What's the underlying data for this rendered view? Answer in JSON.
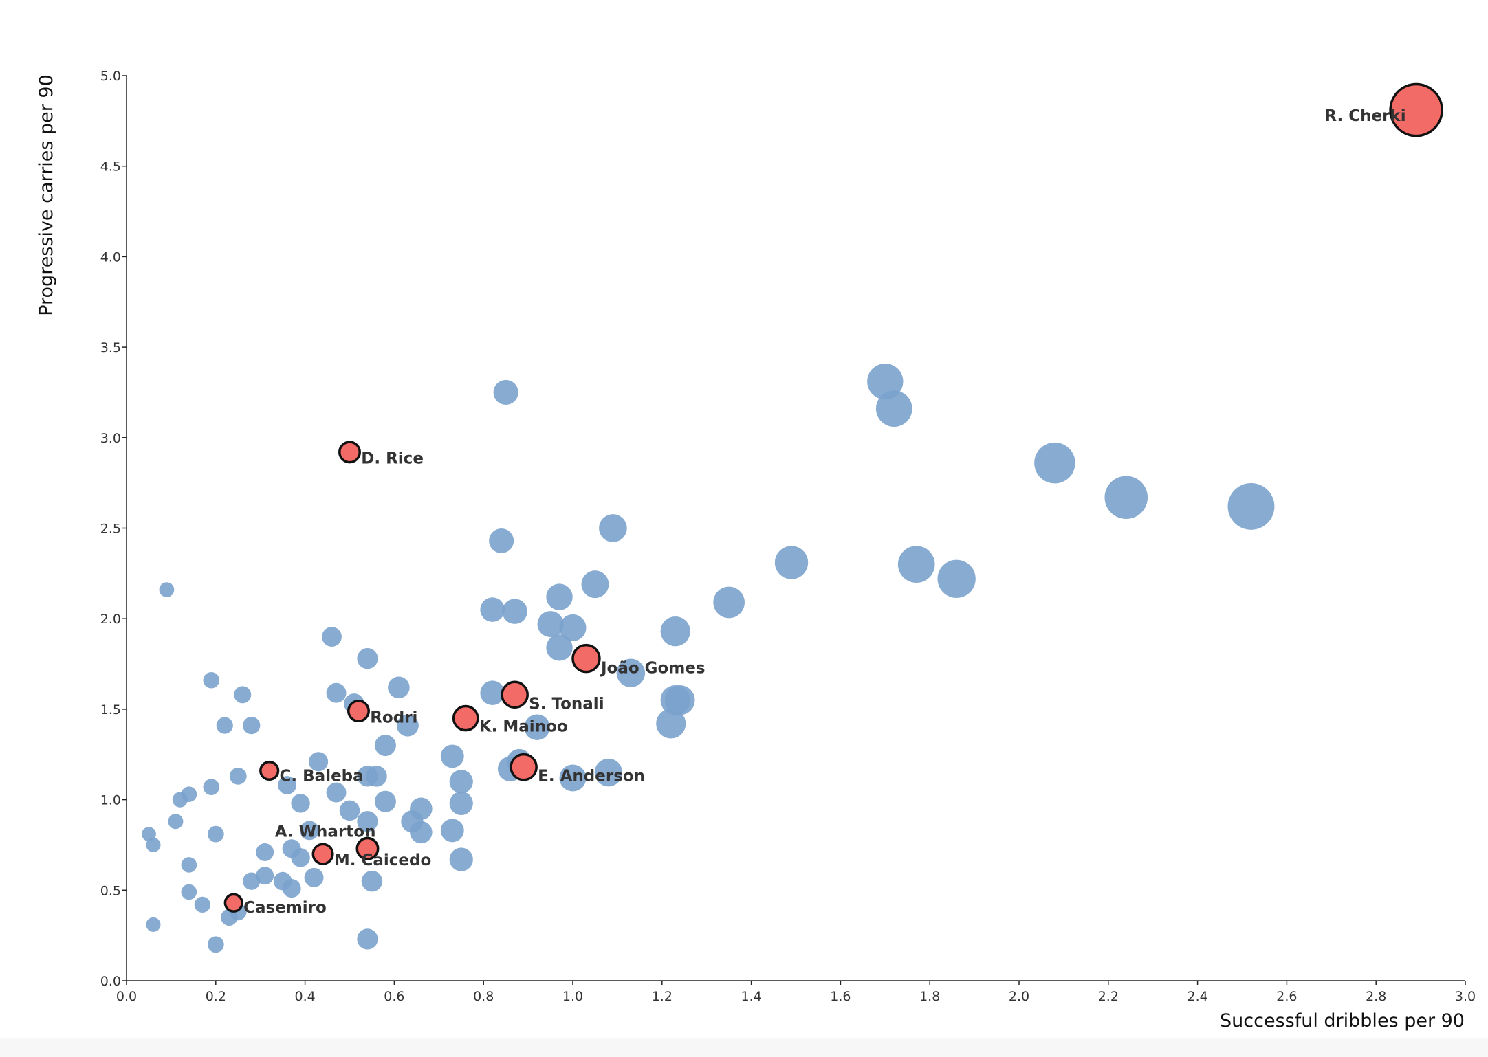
{
  "chart_data": {
    "type": "scatter",
    "xlabel": "Successful dribbles per 90",
    "ylabel": "Progressive carries per 90",
    "xlim": [
      0,
      3
    ],
    "ylim": [
      0,
      5
    ],
    "x_ticks": [
      "0.0",
      "0.2",
      "0.4",
      "0.6",
      "0.8",
      "1.0",
      "1.2",
      "1.4",
      "1.6",
      "1.8",
      "2.0",
      "2.2",
      "2.4",
      "2.6",
      "2.8",
      "3.0"
    ],
    "y_ticks": [
      "0.0",
      "0.5",
      "1.0",
      "1.5",
      "2.0",
      "2.5",
      "3.0",
      "3.5",
      "4.0",
      "4.5",
      "5.0"
    ],
    "grid": false,
    "colors": {
      "background": "#7aa2cc",
      "highlight": "#f26b66",
      "highlight_stroke": "#111111"
    },
    "highlighted": [
      {
        "label": "R. Cherki",
        "x": 2.89,
        "y": 4.81,
        "size": 2.9,
        "label_side": "left"
      },
      {
        "label": "D. Rice",
        "x": 0.5,
        "y": 2.92,
        "size": 0.5,
        "label_side": "right"
      },
      {
        "label": "João Gomes",
        "x": 1.03,
        "y": 1.78,
        "size": 1.0,
        "label_side": "right"
      },
      {
        "label": "S. Tonali",
        "x": 0.87,
        "y": 1.58,
        "size": 0.9,
        "label_side": "right"
      },
      {
        "label": "Rodri",
        "x": 0.52,
        "y": 1.49,
        "size": 0.5,
        "label_side": "right"
      },
      {
        "label": "K. Mainoo",
        "x": 0.76,
        "y": 1.45,
        "size": 0.8,
        "label_side": "right"
      },
      {
        "label": "E. Anderson",
        "x": 0.89,
        "y": 1.18,
        "size": 0.9,
        "label_side": "right"
      },
      {
        "label": "C. Baleba",
        "x": 0.32,
        "y": 1.16,
        "size": 0.3,
        "label_side": "right"
      },
      {
        "label": "A. Wharton",
        "x": 0.54,
        "y": 0.73,
        "size": 0.55,
        "label_side": "left-up"
      },
      {
        "label": "M. Caicedo",
        "x": 0.44,
        "y": 0.7,
        "size": 0.45,
        "label_side": "right"
      },
      {
        "label": "Casemiro",
        "x": 0.24,
        "y": 0.43,
        "size": 0.25,
        "label_side": "right"
      }
    ],
    "background_points": [
      [
        0.05,
        0.81
      ],
      [
        0.06,
        0.75
      ],
      [
        0.06,
        0.31
      ],
      [
        0.09,
        2.16
      ],
      [
        0.11,
        0.88
      ],
      [
        0.12,
        1.0
      ],
      [
        0.14,
        1.03
      ],
      [
        0.14,
        0.64
      ],
      [
        0.14,
        0.49
      ],
      [
        0.17,
        0.42
      ],
      [
        0.19,
        1.66
      ],
      [
        0.19,
        1.07
      ],
      [
        0.2,
        0.81
      ],
      [
        0.2,
        0.2
      ],
      [
        0.22,
        1.41
      ],
      [
        0.23,
        0.35
      ],
      [
        0.25,
        1.13
      ],
      [
        0.25,
        0.38
      ],
      [
        0.26,
        1.58
      ],
      [
        0.28,
        1.41
      ],
      [
        0.28,
        0.55
      ],
      [
        0.31,
        0.71
      ],
      [
        0.31,
        0.58
      ],
      [
        0.35,
        0.55
      ],
      [
        0.36,
        1.08
      ],
      [
        0.37,
        0.73
      ],
      [
        0.37,
        0.51
      ],
      [
        0.39,
        0.98
      ],
      [
        0.39,
        0.68
      ],
      [
        0.41,
        0.83
      ],
      [
        0.42,
        0.57
      ],
      [
        0.43,
        1.21
      ],
      [
        0.46,
        1.9
      ],
      [
        0.47,
        1.59
      ],
      [
        0.47,
        1.04
      ],
      [
        0.5,
        0.94
      ],
      [
        0.51,
        1.53
      ],
      [
        0.54,
        1.78
      ],
      [
        0.54,
        1.13
      ],
      [
        0.54,
        0.88
      ],
      [
        0.54,
        0.23
      ],
      [
        0.55,
        0.55
      ],
      [
        0.56,
        1.13
      ],
      [
        0.58,
        1.3
      ],
      [
        0.58,
        0.99
      ],
      [
        0.61,
        1.62
      ],
      [
        0.63,
        1.41
      ],
      [
        0.64,
        0.88
      ],
      [
        0.66,
        0.95
      ],
      [
        0.66,
        0.82
      ],
      [
        0.73,
        1.24
      ],
      [
        0.73,
        0.83
      ],
      [
        0.75,
        1.1
      ],
      [
        0.75,
        0.98
      ],
      [
        0.75,
        0.67
      ],
      [
        0.82,
        2.05
      ],
      [
        0.82,
        1.59
      ],
      [
        0.84,
        2.43
      ],
      [
        0.85,
        3.25
      ],
      [
        0.86,
        1.17
      ],
      [
        0.87,
        2.04
      ],
      [
        0.88,
        1.21
      ],
      [
        0.92,
        1.4
      ],
      [
        0.95,
        1.97
      ],
      [
        0.97,
        2.12
      ],
      [
        0.97,
        1.84
      ],
      [
        1.0,
        1.95
      ],
      [
        1.0,
        1.12
      ],
      [
        1.05,
        2.19
      ],
      [
        1.08,
        1.15
      ],
      [
        1.09,
        2.5
      ],
      [
        1.13,
        1.7
      ],
      [
        1.22,
        1.42
      ],
      [
        1.23,
        1.93
      ],
      [
        1.23,
        1.55
      ],
      [
        1.24,
        1.55
      ],
      [
        1.35,
        2.09
      ],
      [
        1.49,
        2.31
      ],
      [
        1.7,
        3.31
      ],
      [
        1.72,
        3.16
      ],
      [
        1.77,
        2.3
      ],
      [
        1.86,
        2.22
      ],
      [
        2.08,
        2.86
      ],
      [
        2.24,
        2.67
      ],
      [
        2.52,
        2.62
      ]
    ]
  }
}
